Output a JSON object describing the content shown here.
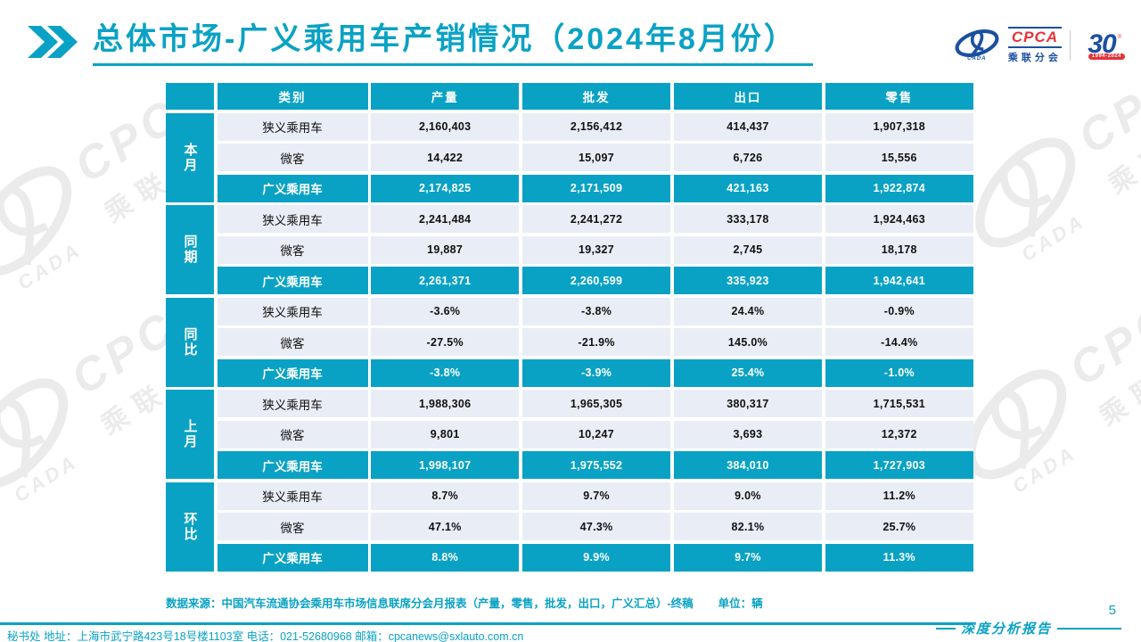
{
  "title": {
    "text": "总体市场-广义乘用车产销情况（2024年8月份）"
  },
  "logo": {
    "cpca": "CPCA",
    "sub": "乘联分会",
    "cada": "CADA",
    "anniv_number": "30",
    "anniv_reg": "®",
    "anniv_years": "1994-2024"
  },
  "watermark": {
    "cpca": "CPCA",
    "sub": "乘联分会",
    "cada": "CADA"
  },
  "table": {
    "headers": [
      "类别",
      "产量",
      "批发",
      "出口",
      "零售"
    ],
    "groups": [
      {
        "label": "本月",
        "rows": [
          {
            "category": "狭义乘用车",
            "values": [
              "2,160,403",
              "2,156,412",
              "414,437",
              "1,907,318"
            ],
            "highlight": false
          },
          {
            "category": "微客",
            "values": [
              "14,422",
              "15,097",
              "6,726",
              "15,556"
            ],
            "highlight": false
          },
          {
            "category": "广义乘用车",
            "values": [
              "2,174,825",
              "2,171,509",
              "421,163",
              "1,922,874"
            ],
            "highlight": true
          }
        ]
      },
      {
        "label": "同期",
        "rows": [
          {
            "category": "狭义乘用车",
            "values": [
              "2,241,484",
              "2,241,272",
              "333,178",
              "1,924,463"
            ],
            "highlight": false
          },
          {
            "category": "微客",
            "values": [
              "19,887",
              "19,327",
              "2,745",
              "18,178"
            ],
            "highlight": false
          },
          {
            "category": "广义乘用车",
            "values": [
              "2,261,371",
              "2,260,599",
              "335,923",
              "1,942,641"
            ],
            "highlight": true
          }
        ]
      },
      {
        "label": "同比",
        "rows": [
          {
            "category": "狭义乘用车",
            "values": [
              "-3.6%",
              "-3.8%",
              "24.4%",
              "-0.9%"
            ],
            "highlight": false
          },
          {
            "category": "微客",
            "values": [
              "-27.5%",
              "-21.9%",
              "145.0%",
              "-14.4%"
            ],
            "highlight": false
          },
          {
            "category": "广义乘用车",
            "values": [
              "-3.8%",
              "-3.9%",
              "25.4%",
              "-1.0%"
            ],
            "highlight": true
          }
        ]
      },
      {
        "label": "上月",
        "rows": [
          {
            "category": "狭义乘用车",
            "values": [
              "1,988,306",
              "1,965,305",
              "380,317",
              "1,715,531"
            ],
            "highlight": false
          },
          {
            "category": "微客",
            "values": [
              "9,801",
              "10,247",
              "3,693",
              "12,372"
            ],
            "highlight": false
          },
          {
            "category": "广义乘用车",
            "values": [
              "1,998,107",
              "1,975,552",
              "384,010",
              "1,727,903"
            ],
            "highlight": true
          }
        ]
      },
      {
        "label": "环比",
        "rows": [
          {
            "category": "狭义乘用车",
            "values": [
              "8.7%",
              "9.7%",
              "9.0%",
              "11.2%"
            ],
            "highlight": false
          },
          {
            "category": "微客",
            "values": [
              "47.1%",
              "47.3%",
              "82.1%",
              "25.7%"
            ],
            "highlight": false
          },
          {
            "category": "广义乘用车",
            "values": [
              "8.8%",
              "9.9%",
              "9.7%",
              "11.3%"
            ],
            "highlight": true
          }
        ]
      }
    ]
  },
  "footer": {
    "source": "数据来源：中国汽车流通协会乘用车市场信息联席分会月报表（产量，零售，批发，出口，广义汇总）-终稿",
    "unit": "单位：辆",
    "contact": "秘书处  地址：上海市武宁路423号18号楼1103室 电话：021-52680968  邮箱：cpcanews@sxlauto.com.cn",
    "report_label": "深度分析报告",
    "page_number": "5"
  },
  "colors": {
    "teal": "#0AA2C4",
    "row_bg": "#E9EDF6",
    "text_dark": "#111111",
    "logo_blue": "#1B4FA1",
    "logo_red": "#E53238",
    "watermark_gray": "#EBEBEB"
  }
}
